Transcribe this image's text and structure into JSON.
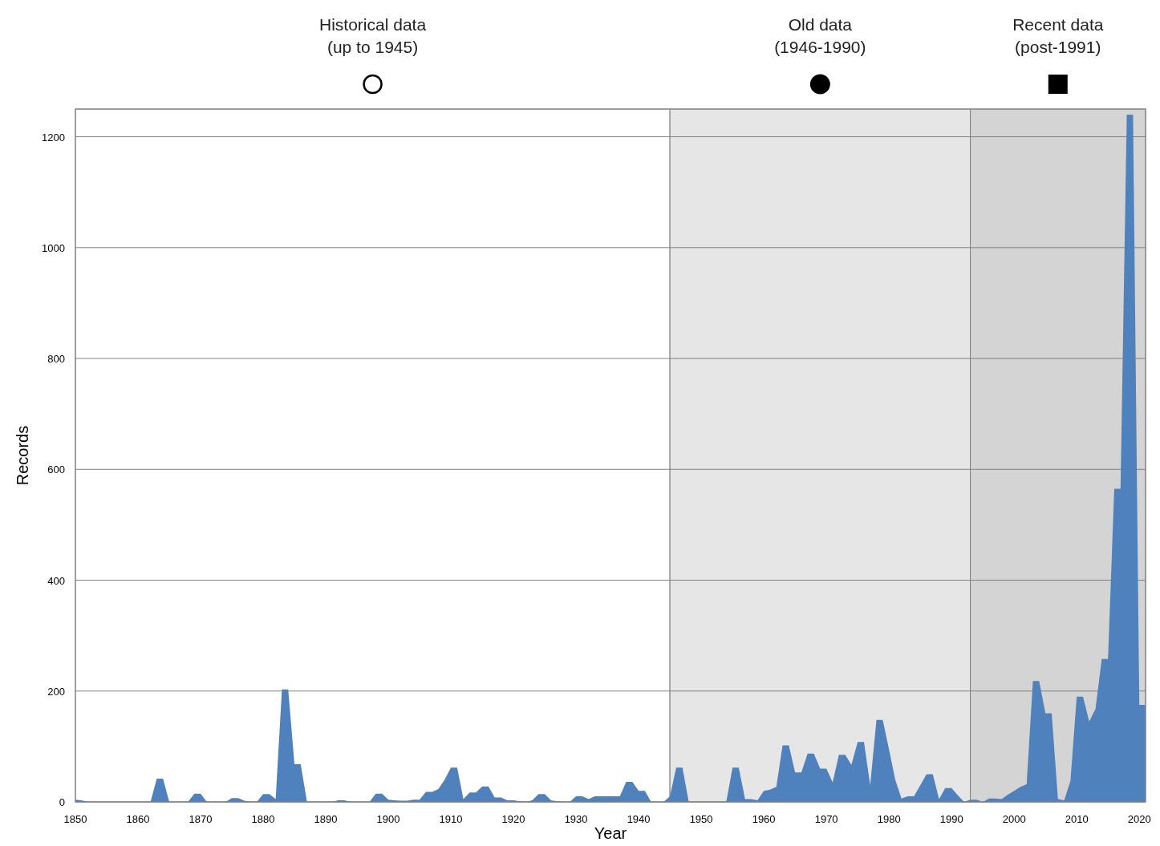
{
  "chart_data": {
    "type": "area",
    "xlabel": "Year",
    "ylabel": "Records",
    "x": [
      1850,
      1851,
      1852,
      1862,
      1863,
      1864,
      1865,
      1868,
      1869,
      1870,
      1871,
      1874,
      1875,
      1876,
      1877,
      1878,
      1879,
      1880,
      1881,
      1882,
      1883,
      1884,
      1885,
      1886,
      1887,
      1891,
      1892,
      1893,
      1894,
      1897,
      1898,
      1899,
      1900,
      1901,
      1902,
      1903,
      1904,
      1905,
      1906,
      1907,
      1908,
      1909,
      1910,
      1911,
      1912,
      1913,
      1914,
      1915,
      1916,
      1917,
      1918,
      1919,
      1920,
      1921,
      1922,
      1923,
      1924,
      1925,
      1926,
      1927,
      1928,
      1929,
      1930,
      1931,
      1932,
      1933,
      1937,
      1938,
      1939,
      1940,
      1941,
      1942,
      1944,
      1945,
      1946,
      1947,
      1948,
      1954,
      1955,
      1956,
      1957,
      1958,
      1959,
      1960,
      1961,
      1962,
      1963,
      1964,
      1965,
      1966,
      1967,
      1968,
      1969,
      1970,
      1971,
      1972,
      1973,
      1974,
      1975,
      1976,
      1977,
      1978,
      1979,
      1980,
      1981,
      1982,
      1983,
      1984,
      1985,
      1986,
      1987,
      1988,
      1989,
      1990,
      1991,
      1992,
      1993,
      1994,
      1995,
      1996,
      1997,
      1998,
      1999,
      2000,
      2001,
      2002,
      2003,
      2004,
      2005,
      2006,
      2007,
      2008,
      2009,
      2010,
      2011,
      2012,
      2013,
      2014,
      2015,
      2016,
      2017,
      2018,
      2019,
      2020,
      2021
    ],
    "series": [
      {
        "color": "#4f81bd",
        "values": [
          4,
          3,
          0,
          0,
          42,
          42,
          0,
          0,
          15,
          15,
          0,
          0,
          7,
          7,
          2,
          0,
          0,
          14,
          14,
          5,
          203,
          203,
          68,
          68,
          0,
          0,
          3,
          3,
          0,
          0,
          15,
          15,
          4,
          3,
          2,
          2,
          4,
          4,
          18,
          18,
          23,
          40,
          62,
          62,
          5,
          17,
          17,
          28,
          28,
          8,
          8,
          3,
          3,
          1,
          0,
          3,
          14,
          14,
          3,
          1,
          0,
          0,
          10,
          10,
          5,
          10,
          10,
          36,
          36,
          20,
          20,
          0,
          0,
          10,
          62,
          62,
          0,
          0,
          62,
          62,
          5,
          5,
          3,
          20,
          22,
          27,
          102,
          102,
          53,
          53,
          87,
          87,
          60,
          60,
          35,
          85,
          85,
          67,
          108,
          108,
          30,
          148,
          148,
          95,
          40,
          6,
          10,
          10,
          30,
          50,
          50,
          5,
          25,
          25,
          12,
          0,
          4,
          4,
          0,
          6,
          6,
          5,
          13,
          20,
          27,
          32,
          218,
          218,
          160,
          160,
          5,
          3,
          38,
          190,
          190,
          145,
          168,
          258,
          258,
          565,
          565,
          1240,
          1240,
          175,
          175
        ]
      }
    ],
    "xlim": [
      1850,
      2021
    ],
    "xticks": [
      1850,
      1860,
      1870,
      1880,
      1890,
      1900,
      1910,
      1920,
      1930,
      1940,
      1950,
      1960,
      1970,
      1980,
      1990,
      2000,
      2010,
      2020
    ],
    "ylim": [
      0,
      1250
    ],
    "yticks": [
      0,
      200,
      400,
      600,
      800,
      1000,
      1200
    ],
    "grid": "y",
    "annotations": [
      "Historical data\n(up to 1945)",
      "Old data\n(1946-1990)",
      "Recent data\n(post-1991)"
    ],
    "bands": [
      {
        "axis": "x",
        "from": 1850,
        "to": 1945,
        "color": "#ffffff"
      },
      {
        "axis": "x",
        "from": 1945,
        "to": 1993,
        "color": "#e6e6e6"
      },
      {
        "axis": "x",
        "from": 1993,
        "to": 2021,
        "color": "#d4d4d4"
      }
    ]
  }
}
